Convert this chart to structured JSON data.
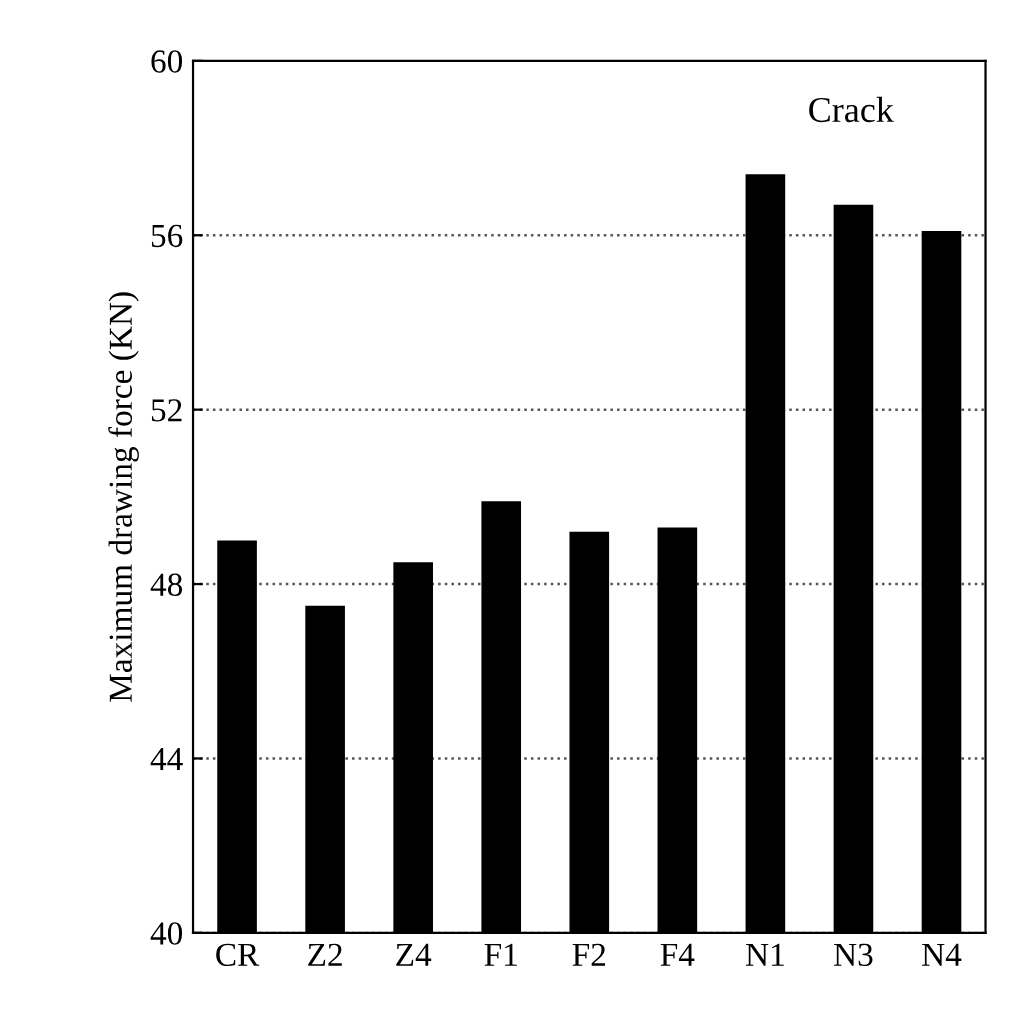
{
  "chart_data": {
    "type": "bar",
    "ylabel": "Maximum drawing force (KN)",
    "categories": [
      "CR",
      "Z2",
      "Z4",
      "F1",
      "F2",
      "F4",
      "N1",
      "N3",
      "N4"
    ],
    "values": [
      49.0,
      47.5,
      48.5,
      49.9,
      49.2,
      49.3,
      57.4,
      56.7,
      56.1
    ],
    "color": "#000000",
    "ylim": [
      40,
      60
    ],
    "yticks": [
      40,
      44,
      48,
      52,
      56,
      60
    ],
    "grid": "y",
    "annotations": [
      "Crack"
    ]
  }
}
